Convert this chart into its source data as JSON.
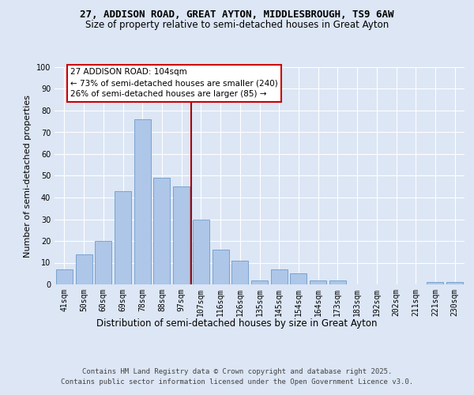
{
  "title": "27, ADDISON ROAD, GREAT AYTON, MIDDLESBROUGH, TS9 6AW",
  "subtitle": "Size of property relative to semi-detached houses in Great Ayton",
  "xlabel": "Distribution of semi-detached houses by size in Great Ayton",
  "ylabel": "Number of semi-detached properties",
  "categories": [
    "41sqm",
    "50sqm",
    "60sqm",
    "69sqm",
    "78sqm",
    "88sqm",
    "97sqm",
    "107sqm",
    "116sqm",
    "126sqm",
    "135sqm",
    "145sqm",
    "154sqm",
    "164sqm",
    "173sqm",
    "183sqm",
    "192sqm",
    "202sqm",
    "211sqm",
    "221sqm",
    "230sqm"
  ],
  "values": [
    7,
    14,
    20,
    43,
    76,
    49,
    45,
    30,
    16,
    11,
    2,
    7,
    5,
    2,
    2,
    0,
    0,
    0,
    0,
    1,
    1
  ],
  "bar_color": "#aec6e8",
  "bar_edge_color": "#5a8fc2",
  "vline_x": 6.5,
  "vline_color": "#aa0000",
  "annotation_title": "27 ADDISON ROAD: 104sqm",
  "annotation_line1": "← 73% of semi-detached houses are smaller (240)",
  "annotation_line2": "26% of semi-detached houses are larger (85) →",
  "annotation_box_color": "#cc0000",
  "ylim": [
    0,
    100
  ],
  "yticks": [
    0,
    10,
    20,
    30,
    40,
    50,
    60,
    70,
    80,
    90,
    100
  ],
  "background_color": "#dce6f5",
  "plot_bg_color": "#dce6f5",
  "footer1": "Contains HM Land Registry data © Crown copyright and database right 2025.",
  "footer2": "Contains public sector information licensed under the Open Government Licence v3.0.",
  "title_fontsize": 9,
  "subtitle_fontsize": 8.5,
  "xlabel_fontsize": 8.5,
  "ylabel_fontsize": 8,
  "tick_fontsize": 7,
  "annot_fontsize": 7.5,
  "footer_fontsize": 6.5
}
